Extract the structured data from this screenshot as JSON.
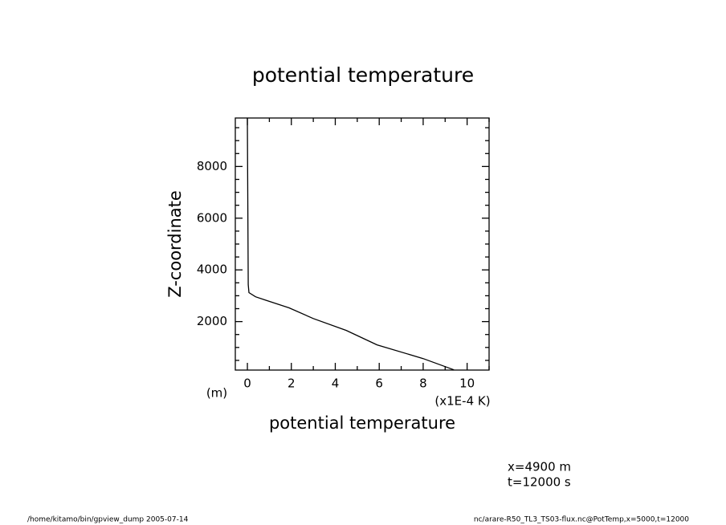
{
  "chart_data": {
    "type": "line",
    "title": "potential temperature",
    "x_label": "potential temperature",
    "x_unit": "(x1E-4 K)",
    "y_label": "Z-coordinate",
    "y_unit": "(m)",
    "annotations": [
      "x=4900 m",
      "t=12000 s"
    ],
    "footer_left": "/home/kitamo/bin/gpview_dump  2005-07-14",
    "footer_right": "nc/arare-R50_TL3_TS03-flux.nc@PotTemp,x=5000,t=12000",
    "series": [
      {
        "name": "potential temperature",
        "color": "#000000",
        "x": [
          9.4,
          8.0,
          5.9,
          4.5,
          3.0,
          1.9,
          0.8,
          0.37,
          0.07,
          0.04,
          0.0
        ],
        "values": [
          134,
          570,
          1100,
          1660,
          2120,
          2530,
          2840,
          2960,
          3120,
          3430,
          9875
        ]
      }
    ],
    "xlim": [
      -0.55,
      11.0
    ],
    "ylim": [
      125,
      9875
    ],
    "xticks": [
      0,
      2,
      4,
      6,
      8,
      10
    ],
    "yticks": [
      2000,
      4000,
      6000,
      8000
    ],
    "xminorticks": [
      1,
      3,
      5,
      7,
      9,
      11
    ],
    "yminorticks": [
      500,
      1000,
      1500,
      2500,
      3000,
      3500,
      4500,
      5000,
      5500,
      6500,
      7000,
      7500,
      8500,
      9000,
      9500
    ]
  }
}
